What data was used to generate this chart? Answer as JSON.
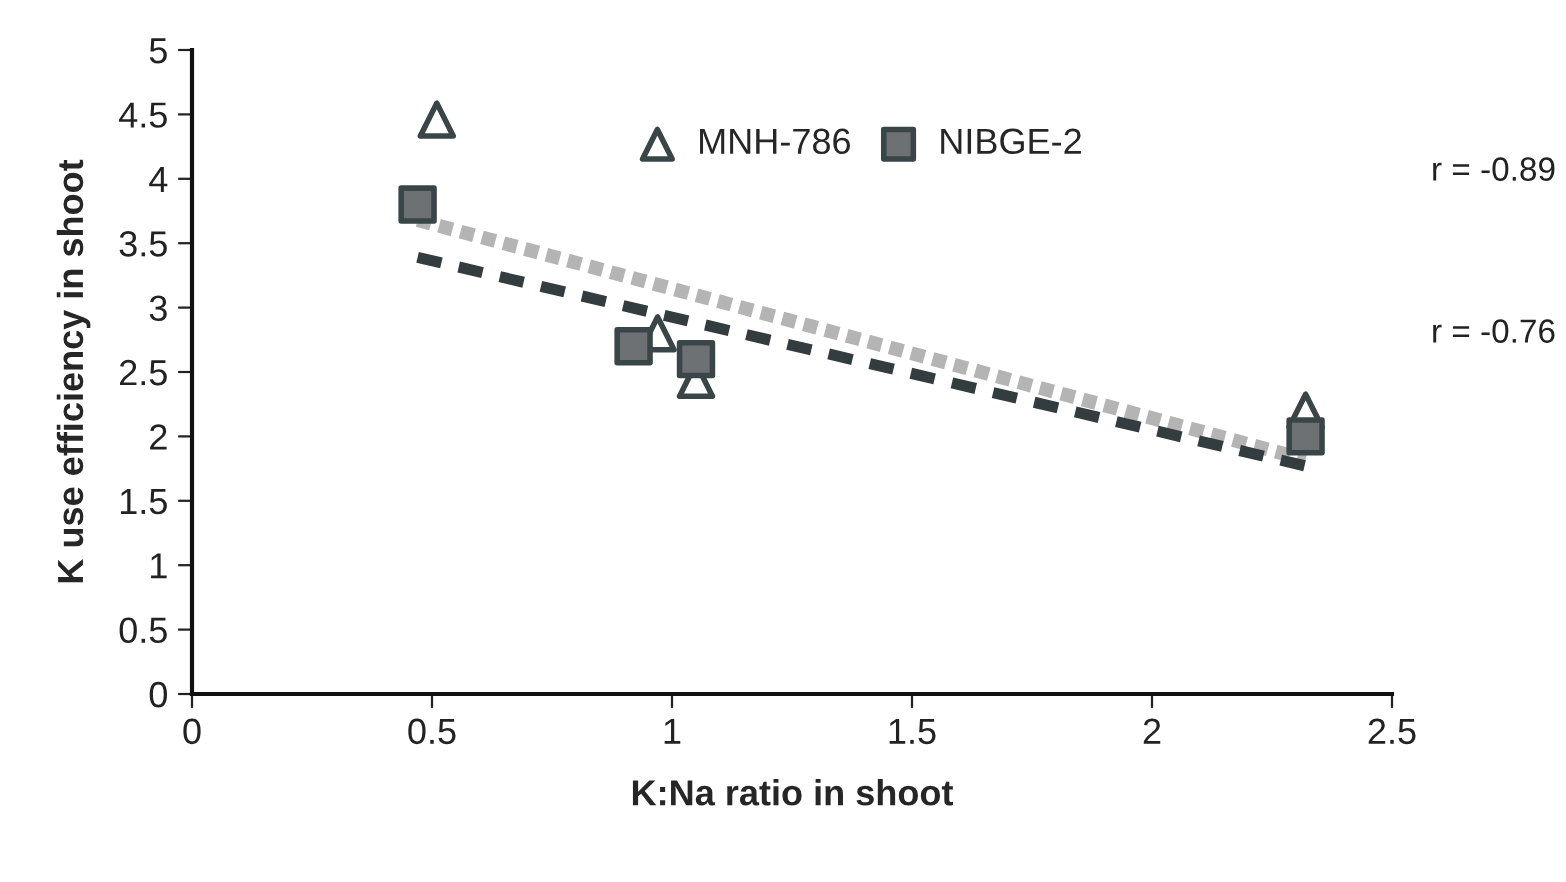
{
  "chart_data": {
    "type": "scatter",
    "xlabel": "K:Na ratio in shoot",
    "ylabel": "K use efficiency in shoot",
    "xlim": [
      0,
      2.5
    ],
    "xticks": [
      0,
      0.5,
      1,
      1.5,
      2,
      2.5
    ],
    "ylim": [
      0,
      5
    ],
    "yticks": [
      0,
      0.5,
      1,
      1.5,
      2,
      2.5,
      3,
      3.5,
      4,
      4.5,
      5
    ],
    "grid": false,
    "legend": "top",
    "annotations": [
      "r = -0.89",
      "r = -0.76"
    ],
    "series": [
      {
        "name": "MNH-786",
        "marker": "triangle",
        "color": "#ffffff",
        "x": [
          0.51,
          0.97,
          1.05,
          2.32
        ],
        "values": [
          4.46,
          2.8,
          2.44,
          2.2
        ]
      },
      {
        "name": "NIBGE-2",
        "marker": "square",
        "color": "#6e7173",
        "x": [
          0.47,
          0.92,
          1.05,
          2.32
        ],
        "values": [
          3.8,
          2.7,
          2.6,
          2.0
        ]
      },
      {
        "type": "line",
        "line_style": "dotted",
        "color": "#b4b4b4",
        "x": [
          0.47,
          2.32
        ],
        "values": [
          3.68,
          1.82
        ]
      },
      {
        "type": "line",
        "line_style": "dashed",
        "color": "#333d40",
        "x": [
          0.47,
          2.32
        ],
        "values": [
          3.39,
          1.77
        ]
      }
    ]
  }
}
